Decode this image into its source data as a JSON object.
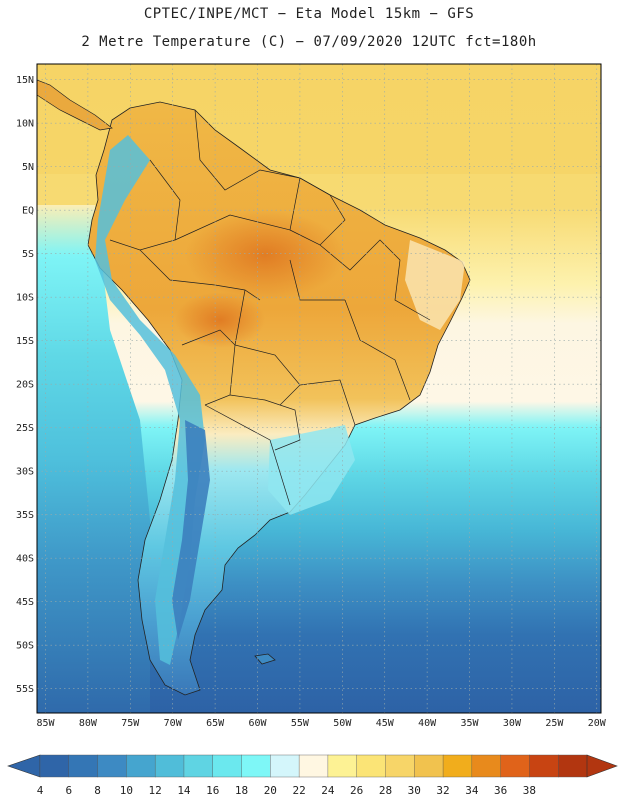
{
  "header": {
    "title_line1": "CPTEC/INPE/MCT −  Eta Model 15km − GFS",
    "title_line2": "2 Metre Temperature (C) − 07/09/2020 12UTC fct=180h"
  },
  "map": {
    "lat_labels": [
      "15N",
      "10N",
      "5N",
      "EQ",
      "5S",
      "10S",
      "15S",
      "20S",
      "25S",
      "30S",
      "35S",
      "40S",
      "45S",
      "50S",
      "55S"
    ],
    "lon_labels": [
      "85W",
      "80W",
      "75W",
      "70W",
      "65W",
      "60W",
      "55W",
      "50W",
      "45W",
      "40W",
      "35W",
      "30W",
      "25W",
      "20W"
    ],
    "lat_values": [
      15,
      10,
      5,
      0,
      -5,
      -10,
      -15,
      -20,
      -25,
      -30,
      -35,
      -40,
      -45,
      -50,
      -55
    ],
    "lon_values": [
      -85,
      -80,
      -75,
      -70,
      -65,
      -60,
      -55,
      -50,
      -45,
      -40,
      -35,
      -30,
      -25,
      -20
    ],
    "extent": {
      "lon_min": -86,
      "lon_max": -19.5,
      "lat_min": -57.8,
      "lat_max": 16.8
    }
  },
  "colorbar": {
    "labels": [
      "4",
      "6",
      "8",
      "10",
      "12",
      "14",
      "16",
      "18",
      "20",
      "22",
      "24",
      "26",
      "28",
      "30",
      "32",
      "34",
      "36",
      "38"
    ],
    "colors": [
      "#2f65a8",
      "#3476b5",
      "#3d8ac3",
      "#45a5cf",
      "#50bdd9",
      "#5fd4e3",
      "#6be8ee",
      "#7ef7f7",
      "#d4f6fb",
      "#fff7e2",
      "#fdf294",
      "#fbe476",
      "#f7d568",
      "#f1c24e",
      "#f1ad1c",
      "#e88a1c",
      "#e0631a",
      "#c84412",
      "#b23610"
    ],
    "under_color": "#2f65a8",
    "over_color": "#b23610"
  },
  "colors": {
    "ocean_north": "#f6d86d",
    "ocean_cold": "#2f6aab",
    "land_warm": "#f1b84f",
    "land_hot": "#e48a28",
    "andes_cold": "#4db8d8",
    "frame": "#000000"
  }
}
